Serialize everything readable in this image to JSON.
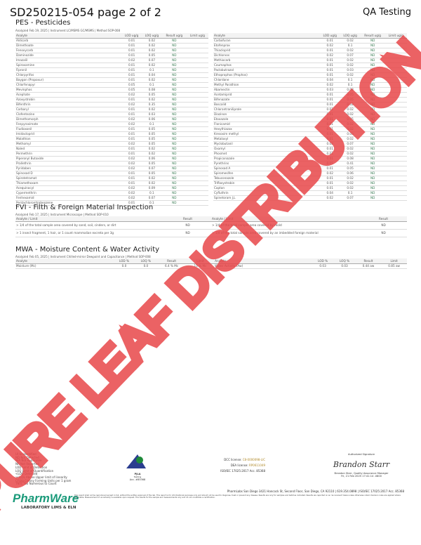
{
  "header": {
    "title": "SD250215-054 page 2 of 2",
    "right": "QA Testing"
  },
  "pes": {
    "title": "PES - Pesticides",
    "meta": "Analyzed Feb 19, 2025  |  Instrument LC/MSMS GC/MSMS  |  Method SOP-008",
    "columns": [
      "Analyte",
      "LOD ug/g",
      "LOQ ug/g",
      "Result ug/g",
      "Limit ug/g"
    ],
    "left": [
      [
        "Aldicarb",
        "0.01",
        "0.02",
        "ND"
      ],
      [
        "Dimethoate",
        "0.01",
        "0.02",
        "ND"
      ],
      [
        "Fenoxycarb",
        "0.01",
        "0.02",
        "ND"
      ],
      [
        "Daminozide",
        "0.01",
        "0.05",
        "ND"
      ],
      [
        "Imazalil",
        "0.02",
        "0.07",
        "ND"
      ],
      [
        "Spiroxamine",
        "0.01",
        "0.02",
        "ND"
      ],
      [
        "Fipronil",
        "0.01",
        "0.1",
        "ND"
      ],
      [
        "Chlorpyrifos",
        "0.01",
        "0.04",
        "ND"
      ],
      [
        "Baygon (Propoxur)",
        "0.01",
        "0.02",
        "ND"
      ],
      [
        "Chlorfenapyr",
        "0.05",
        "0.1",
        "ND"
      ],
      [
        "Mevinphos",
        "0.05",
        "0.08",
        "ND"
      ],
      [
        "Acephate",
        "0.02",
        "0.05",
        "ND"
      ],
      [
        "Azoxystrobin",
        "0.01",
        "0.02",
        "ND"
      ],
      [
        "Bifenthrin",
        "0.02",
        "0.35",
        "ND"
      ],
      [
        "Carbaryl",
        "0.01",
        "0.02",
        "ND"
      ],
      [
        "Clofentezine",
        "0.01",
        "0.03",
        "ND"
      ],
      [
        "Dimethomorph",
        "0.02",
        "0.06",
        "ND"
      ],
      [
        "Fenpyroximate",
        "0.02",
        "0.1",
        "ND"
      ],
      [
        "Fludioxonil",
        "0.01",
        "0.05",
        "ND"
      ],
      [
        "Imidacloprid",
        "0.01",
        "0.05",
        "ND"
      ],
      [
        "Malathion",
        "0.01",
        "0.05",
        "ND"
      ],
      [
        "Methomyl",
        "0.02",
        "0.05",
        "ND"
      ],
      [
        "Naled",
        "0.01",
        "0.02",
        "ND"
      ],
      [
        "Permethrin",
        "0.01",
        "0.02",
        "ND"
      ],
      [
        "Piperonyl Butoxide",
        "0.02",
        "0.06",
        "ND"
      ],
      [
        "Prallethrin",
        "0.02",
        "0.05",
        "ND"
      ],
      [
        "Pyridaben",
        "0.02",
        "0.07",
        "ND"
      ],
      [
        "Spinosad D",
        "0.01",
        "0.05",
        "ND"
      ],
      [
        "Spirotetramat",
        "0.01",
        "0.02",
        "ND"
      ],
      [
        "Thiamethoxam",
        "0.01",
        "0.02",
        "ND"
      ],
      [
        "Acequinocyl",
        "0.02",
        "0.09",
        "ND"
      ],
      [
        "Cypermethrin",
        "0.02",
        "0.1",
        "ND"
      ],
      [
        "Fenhexamid",
        "0.02",
        "0.07",
        "ND"
      ],
      [
        "Pentachloronitrobenzene",
        "0.01",
        "0.1",
        "ND"
      ]
    ],
    "right": [
      [
        "Carbofuran",
        "0.01",
        "0.02",
        "ND"
      ],
      [
        "Etofenprox",
        "0.02",
        "0.1",
        "ND"
      ],
      [
        "Thiacloprid",
        "0.01",
        "0.02",
        "ND"
      ],
      [
        "Dichlorvos",
        "0.02",
        "0.07",
        "ND"
      ],
      [
        "Methiocarb",
        "0.01",
        "0.02",
        "ND"
      ],
      [
        "Coumaphos",
        "0.01",
        "0.02",
        "ND"
      ],
      [
        "Paclobutrazol",
        "0.01",
        "0.03",
        "ND"
      ],
      [
        "Ethoprophos (Prophos)",
        "0.01",
        "0.02",
        "ND"
      ],
      [
        "Chlordane",
        "0.04",
        "0.1",
        "ND"
      ],
      [
        "Methyl Parathion",
        "0.02",
        "0.1",
        "ND"
      ],
      [
        "Abamectin",
        "0.03",
        "0.08",
        "ND"
      ],
      [
        "Acetamiprid",
        "0.01",
        "0.05",
        "ND"
      ],
      [
        "Bifenazate",
        "0.01",
        "0.05",
        "ND"
      ],
      [
        "Boscalid",
        "0.01",
        "0.02",
        "ND"
      ],
      [
        "Chlorantraniliprole",
        "0.01",
        "0.02",
        "ND"
      ],
      [
        "Diazinon",
        "0.01",
        "0.02",
        "ND"
      ],
      [
        "Etoxazole",
        "0.01",
        "0.05",
        "ND"
      ],
      [
        "Flonicamid",
        "0.01",
        "0.02",
        "ND"
      ],
      [
        "Hexythiazox",
        "0.01",
        "0.02",
        "ND"
      ],
      [
        "Kresoxim methyl",
        "0.01",
        "0.03",
        "ND"
      ],
      [
        "Metalaxyl",
        "0.01",
        "0.02",
        "ND"
      ],
      [
        "Myclobutanil",
        "0.02",
        "0.07",
        "ND"
      ],
      [
        "Oxamyl",
        "0.01",
        "0.02",
        "ND"
      ],
      [
        "Phosmet",
        "0.01",
        "0.02",
        "ND"
      ],
      [
        "Propiconazole",
        "0.01",
        "0.08",
        "ND"
      ],
      [
        "Pyrethrins",
        "0.05",
        "0.41",
        "ND"
      ],
      [
        "Spinosad A",
        "0.01",
        "0.05",
        "ND"
      ],
      [
        "Spiromesifen",
        "0.02",
        "0.06",
        "ND"
      ],
      [
        "Tebuconazole",
        "0.01",
        "0.02",
        "ND"
      ],
      [
        "Trifloxystrobin",
        "0.01",
        "0.02",
        "ND"
      ],
      [
        "Captan",
        "0.01",
        "0.02",
        "ND"
      ],
      [
        "Cyfluthrin",
        "0.04",
        "0.1",
        "ND"
      ],
      [
        "Spinetoram J,L",
        "0.02",
        "0.07",
        "ND"
      ]
    ]
  },
  "fvi": {
    "title": "FVI - Filth & Foreign Material Inspection",
    "meta": "Analyzed Feb 17, 2025  |  Instrument Microscope  |  Method SOP-010",
    "columns": [
      "Analyte / Limit",
      "Result",
      "Analyte / Limit",
      "Result"
    ],
    "rows": [
      [
        "> 1/4 of the total sample area covered by sand, soil, cinders, or dirt",
        "ND",
        "> 1/4 of the total sample area covered by mold",
        "ND"
      ],
      [
        "> 1 insect fragment, 1 hair, or 1 count mammalian excreta per 3g",
        "ND",
        "> 1/4 of the total sample area covered by an imbedded foreign material",
        "ND"
      ]
    ]
  },
  "mwa": {
    "title": "MWA - Moisture Content & Water Activity",
    "meta": "Analyzed Feb 05, 2025  |  Instrument Chilled-mirror Dewpoint and Capacitance  |  Method SOP-008",
    "columns": [
      "Analyte",
      "LOD %",
      "LOQ %",
      "Result",
      "Limit",
      "Analyte",
      "LOD %",
      "LOQ %",
      "Result",
      "Limit"
    ],
    "row": [
      "Moisture (Mc)",
      "0.0",
      "0.0",
      "6.4 % Mc",
      "15 % Mc",
      "Water Activity (Aw)",
      "0.03",
      "0.03",
      "0.44 aw",
      "0.85 aw"
    ]
  },
  "legend": [
    "UI Unidentified",
    "ND Not Detected",
    "N/A Not Applicable",
    "NR Not Reported",
    "LOD Limit of Detection",
    "LOQ Limit of Quantification",
    "<LOQ Detected",
    ">ULOL Above Upper limit of linearity",
    "CFU/g Colony Forming Units per 1 gram",
    "TNTC Too Numerous to Count"
  ],
  "pjla": {
    "label": "PJLA",
    "sub": "Testing",
    "acc": "Acc. #85368"
  },
  "licenses": {
    "dcc_label": "DCC license:",
    "dcc": "C8-0000098-LIC",
    "dea_label": "DEA license:",
    "dea": "RP0611049",
    "iso": "ISO/IEC 17025:2017 Acc. 85368"
  },
  "address": "PharmLabs San Diego 3421 Hancock St, Second Floor, San Diego, CA 92110 | 619.354.0898 | ISO/IEC 17025:2017 Acc. 85368",
  "disclaimer": "This report shall not be reproduced except in full, without the written approval of the lab. This report is for informational purposes only and should not be used to diagnose, treat or prevent any disease. Results are only for samples and batches indicated. Results are reported on an 'as received' basis unless otherwise noted. Decision rules are applied where applicable. Measurement of uncertainty is available upon request. The results for the sample are measurements only and do not constitute a certification.",
  "signature": {
    "label": "Authorized Signature",
    "signed": "Brandon Starr",
    "name": "Brandon Starr, Quality Assurance Manager",
    "date": "Fri, 21 Feb 2025 17:41:14 -0800"
  },
  "logo": {
    "brand": "PharmWare",
    "sub": "LABORATORY LIMS & ELN"
  },
  "watermark": {
    "text": "PURE LEAF DISTRIBUTION",
    "color": "#e8474a"
  }
}
